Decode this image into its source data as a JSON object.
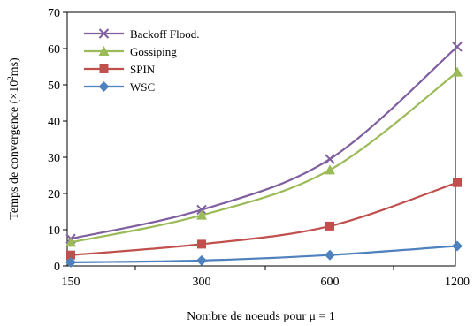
{
  "chart_data": {
    "type": "line",
    "x": [
      150,
      300,
      600,
      1200
    ],
    "categories": [
      "150",
      "300",
      "600",
      "1200"
    ],
    "xlabel": "Nombre de noeuds pour μ = 1",
    "ylabel_main": "Temps de convergence  (×10",
    "ylabel_sup": "2",
    "ylabel_tail": "ms)",
    "ylim": [
      0,
      70
    ],
    "yticks": [
      0,
      10,
      20,
      30,
      40,
      50,
      60,
      70
    ],
    "grid": false,
    "legend_position": "top-left",
    "series": [
      {
        "name": "Backoff Flood.",
        "values": [
          7.5,
          15.5,
          29.5,
          60.5
        ],
        "color": "#7f5f9f",
        "marker": "x"
      },
      {
        "name": "Gossiping",
        "values": [
          6.5,
          14,
          26.5,
          53.5
        ],
        "color": "#9bbb59",
        "marker": "triangle"
      },
      {
        "name": "SPIN",
        "values": [
          3,
          6,
          11,
          23
        ],
        "color": "#c0504d",
        "marker": "square"
      },
      {
        "name": "WSC",
        "values": [
          1,
          1.5,
          3,
          5.5
        ],
        "color": "#4f81bd",
        "marker": "diamond"
      }
    ]
  }
}
